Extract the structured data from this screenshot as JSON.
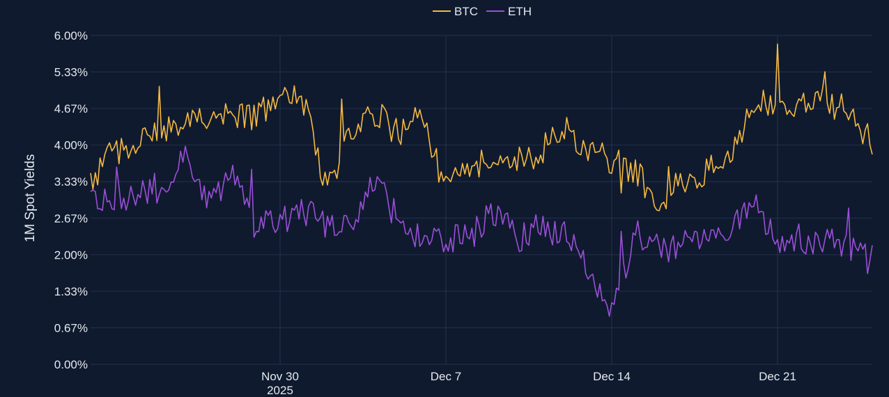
{
  "chart_data": {
    "type": "line",
    "title": "",
    "xlabel": "",
    "ylabel": "1M Spot Yields",
    "ylim": [
      0,
      6
    ],
    "y_ticks": [
      "0.00%",
      "0.67%",
      "1.33%",
      "2.00%",
      "2.67%",
      "3.33%",
      "4.00%",
      "4.67%",
      "5.33%",
      "6.00%"
    ],
    "x_range": [
      "2025-11-22",
      "2025-12-25"
    ],
    "x_ticks": [
      {
        "date": "2025-11-30",
        "label": "Nov 30",
        "sublabel": "2025"
      },
      {
        "date": "2025-12-07",
        "label": "Dec 7",
        "sublabel": ""
      },
      {
        "date": "2025-12-14",
        "label": "Dec 14",
        "sublabel": ""
      },
      {
        "date": "2025-12-21",
        "label": "Dec 21",
        "sublabel": ""
      }
    ],
    "legend_placement": "top-center",
    "grid": true,
    "x": [
      "2025-11-22",
      "2025-11-23",
      "2025-11-24",
      "2025-11-25",
      "2025-11-26",
      "2025-11-27",
      "2025-11-28",
      "2025-11-29",
      "2025-11-30",
      "2025-12-01",
      "2025-12-02",
      "2025-12-03",
      "2025-12-04",
      "2025-12-05",
      "2025-12-06",
      "2025-12-07",
      "2025-12-08",
      "2025-12-09",
      "2025-12-10",
      "2025-12-11",
      "2025-12-12",
      "2025-12-13",
      "2025-12-14",
      "2025-12-15",
      "2025-12-16",
      "2025-12-17",
      "2025-12-18",
      "2025-12-19",
      "2025-12-20",
      "2025-12-21",
      "2025-12-22",
      "2025-12-23",
      "2025-12-24",
      "2025-12-25"
    ],
    "series": [
      {
        "name": "BTC",
        "color": "#f5b942",
        "values": [
          3.3,
          3.9,
          4.0,
          4.3,
          4.3,
          4.6,
          4.5,
          4.5,
          4.9,
          4.8,
          3.2,
          4.2,
          4.6,
          4.2,
          4.5,
          3.2,
          3.5,
          3.9,
          3.7,
          3.9,
          4.3,
          3.9,
          3.7,
          3.5,
          3.0,
          3.3,
          3.5,
          3.8,
          4.7,
          4.8,
          4.7,
          4.8,
          4.6,
          4.0
        ]
      },
      {
        "name": "ETH",
        "color": "#9b4fd9",
        "values": [
          3.0,
          3.0,
          3.1,
          3.1,
          3.9,
          3.0,
          3.4,
          2.5,
          2.6,
          2.8,
          2.5,
          2.5,
          3.4,
          2.6,
          2.3,
          2.3,
          2.3,
          2.8,
          2.3,
          2.5,
          2.4,
          1.8,
          0.9,
          2.4,
          2.1,
          2.2,
          2.2,
          2.4,
          2.9,
          2.2,
          2.3,
          2.2,
          2.2,
          1.9
        ]
      }
    ]
  }
}
